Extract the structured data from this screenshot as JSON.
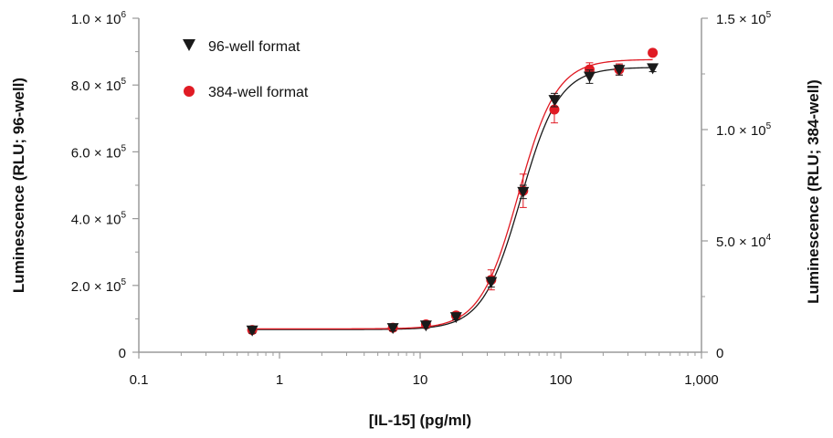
{
  "chart_data": {
    "type": "scatter",
    "xlabel": "[IL-15] (pg/ml)",
    "ylabel_left": "Luminescence (RLU; 96-well)",
    "ylabel_right": "Luminescence (RLU; 384-well)",
    "x_scale": "log",
    "xlim": [
      0.1,
      1000
    ],
    "ylim_left": [
      0,
      1000000
    ],
    "ylim_right": [
      0,
      150000
    ],
    "x_ticks": [
      {
        "value": 0.1,
        "label": "0.1"
      },
      {
        "value": 1,
        "label": "1"
      },
      {
        "value": 10,
        "label": "10"
      },
      {
        "value": 100,
        "label": "100"
      },
      {
        "value": 1000,
        "label": "1,000"
      }
    ],
    "y_left_ticks": [
      {
        "value": 0,
        "mant": "0",
        "exp": ""
      },
      {
        "value": 200000,
        "mant": "2.0 × 10",
        "exp": "5"
      },
      {
        "value": 400000,
        "mant": "4.0 × 10",
        "exp": "5"
      },
      {
        "value": 600000,
        "mant": "6.0 × 10",
        "exp": "5"
      },
      {
        "value": 800000,
        "mant": "8.0 × 10",
        "exp": "5"
      },
      {
        "value": 1000000,
        "mant": "1.0 × 10",
        "exp": "6"
      }
    ],
    "y_right_ticks": [
      {
        "value": 0,
        "mant": "0",
        "exp": ""
      },
      {
        "value": 50000,
        "mant": "5.0 × 10",
        "exp": "4"
      },
      {
        "value": 100000,
        "mant": "1.0 × 10",
        "exp": "5"
      },
      {
        "value": 150000,
        "mant": "1.5 × 10",
        "exp": "5"
      }
    ],
    "legend_position": "top-left",
    "series": [
      {
        "name": "96-well format",
        "axis": "left",
        "marker": "triangle-down",
        "color": "#1a1a1a",
        "x": [
          0.64,
          6.4,
          11,
          18,
          32,
          54,
          90,
          160,
          260,
          450
        ],
        "y": [
          65000,
          72000,
          80000,
          105000,
          210000,
          480000,
          755000,
          825000,
          845000,
          850000
        ],
        "err": [
          8000,
          8000,
          8000,
          8000,
          15000,
          20000,
          20000,
          20000,
          15000,
          10000
        ],
        "fit": {
          "bottom": 68000,
          "top": 853000,
          "ec50": 52,
          "hill": 3.2
        }
      },
      {
        "name": "384-well format",
        "axis": "right",
        "marker": "circle",
        "color": "#e01b24",
        "x": [
          0.64,
          6.4,
          11,
          18,
          32,
          54,
          90,
          160,
          260,
          450
        ],
        "y": [
          10000,
          11000,
          12500,
          16500,
          32500,
          72500,
          109000,
          127000,
          127000,
          134500
        ],
        "err": [
          1500,
          1500,
          1500,
          1500,
          4500,
          7500,
          6000,
          3000,
          2500,
          1000
        ],
        "fit": {
          "bottom": 10500,
          "top": 131500,
          "ec50": 50,
          "hill": 3.2
        }
      }
    ]
  }
}
